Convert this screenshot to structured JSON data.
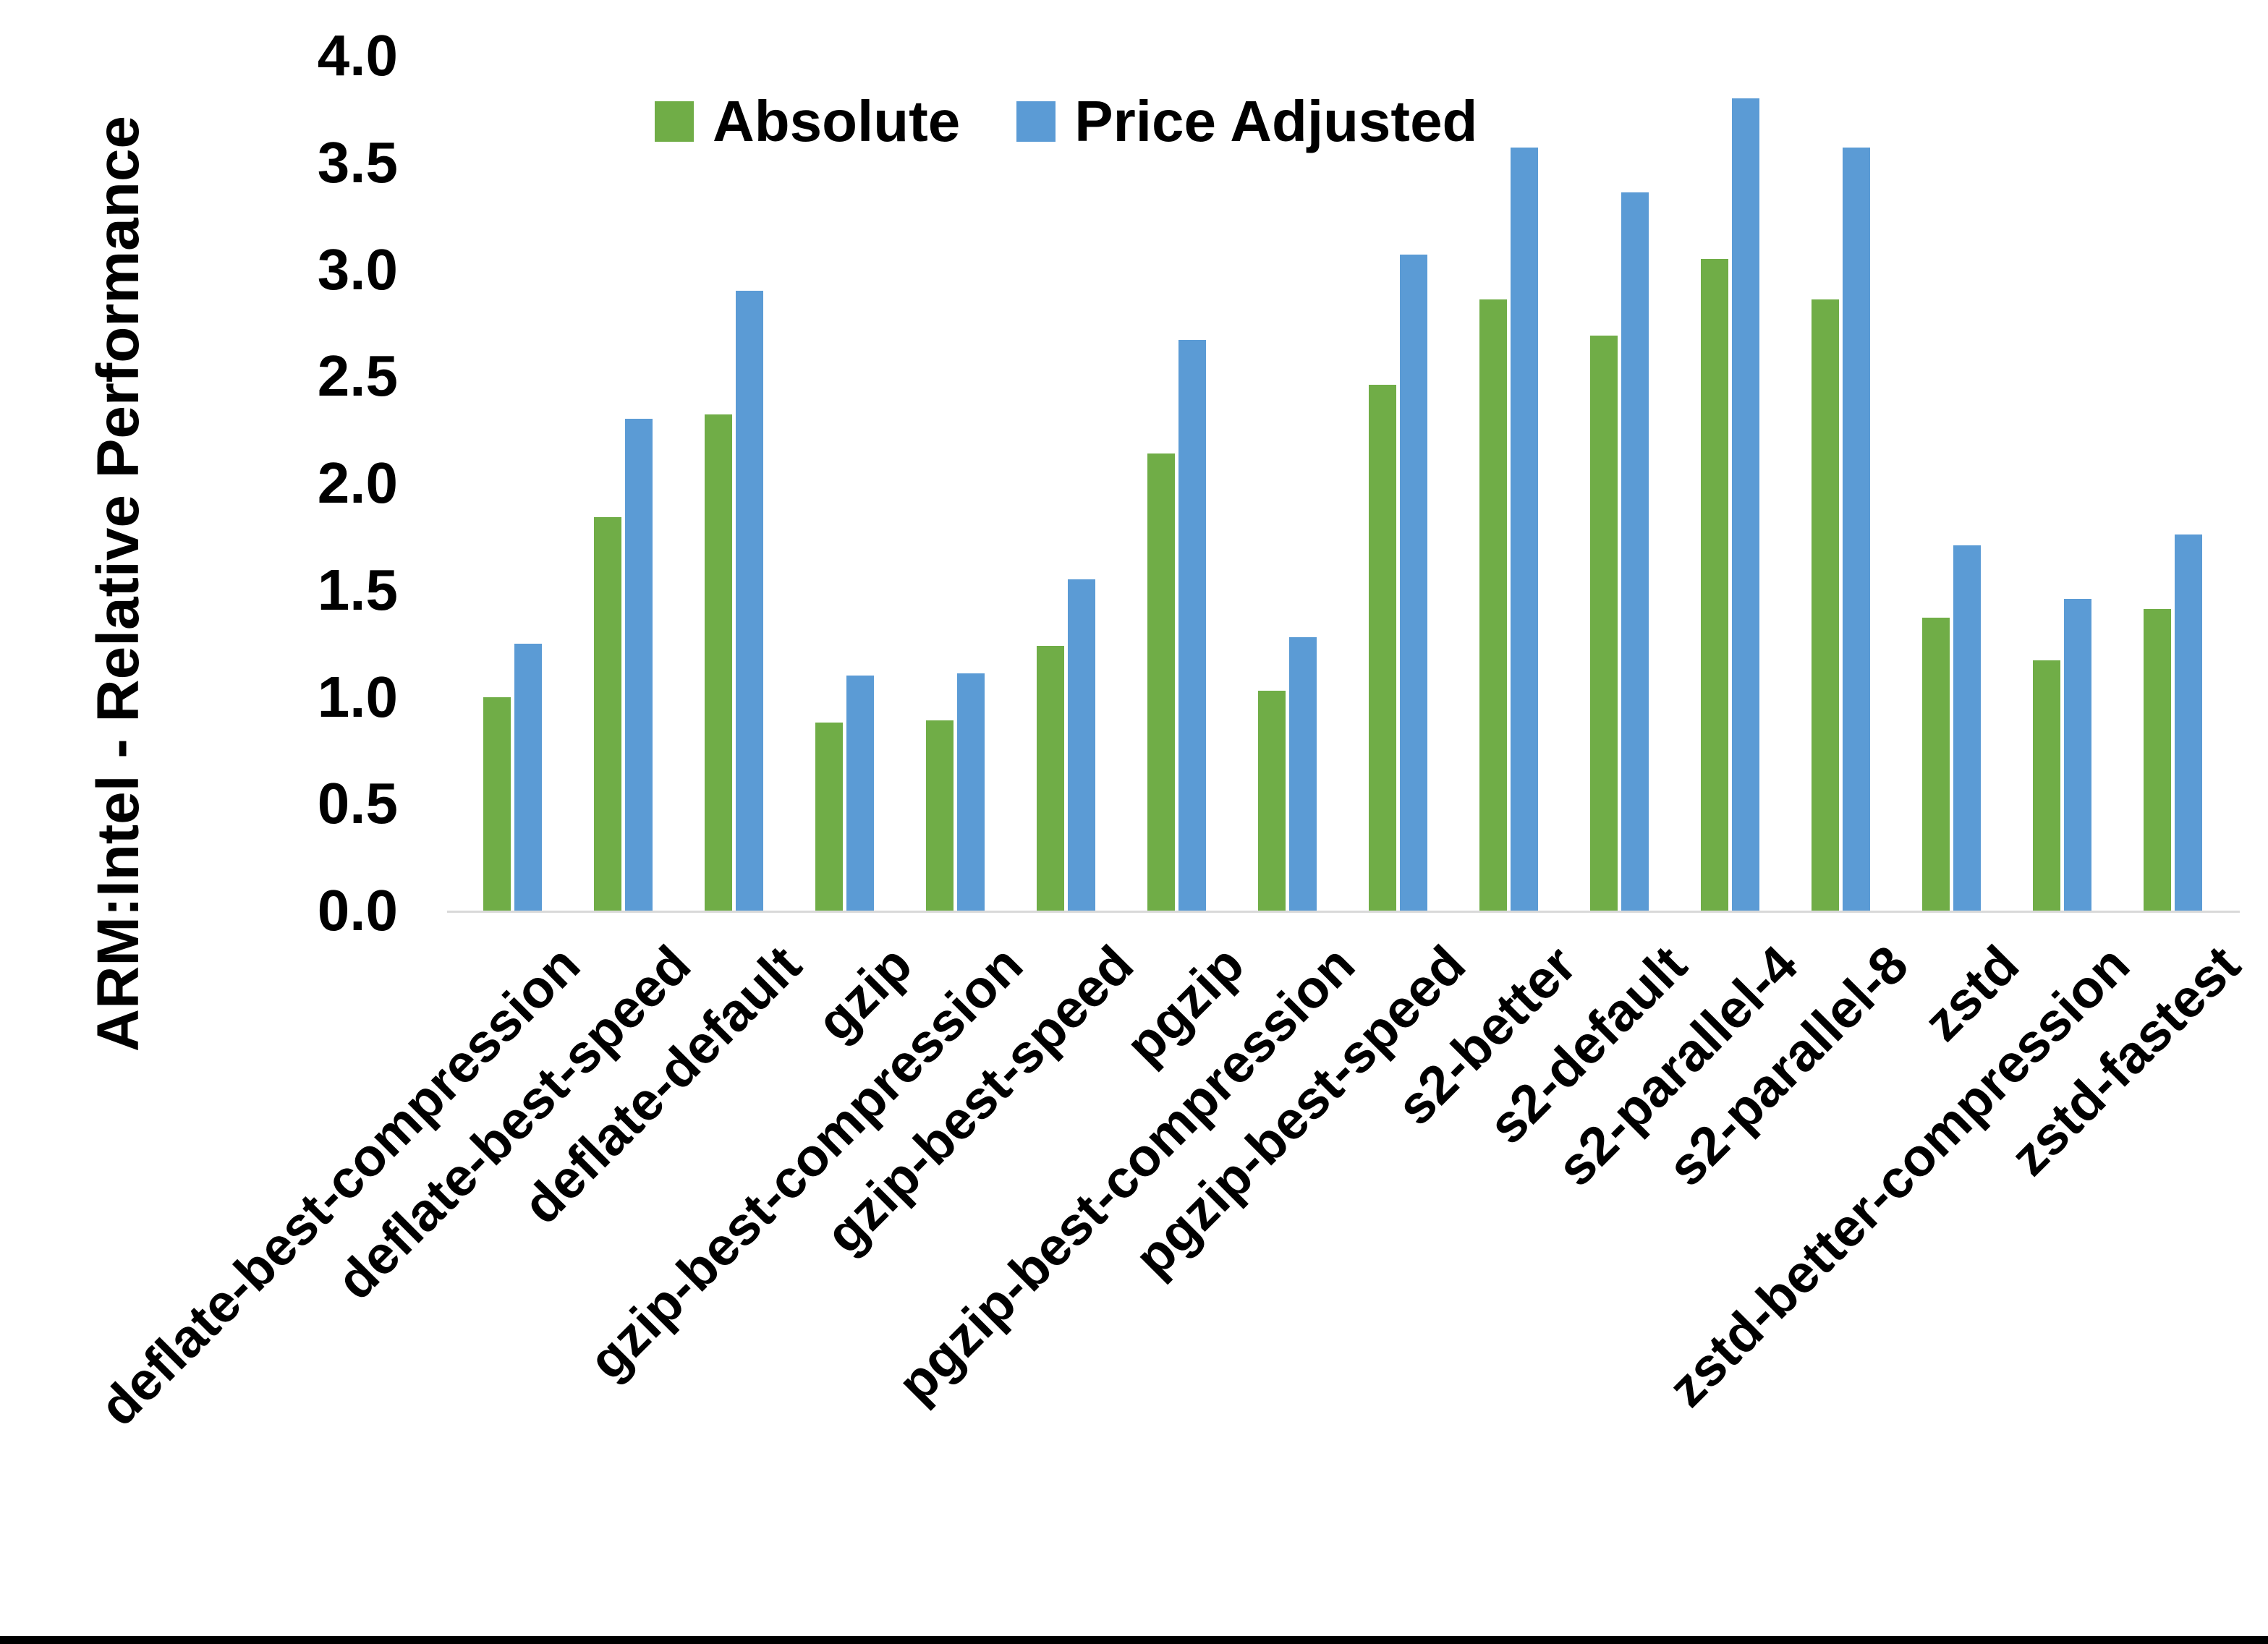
{
  "figure": {
    "background_color": "#FFFFFF",
    "axis_line_color": "#D9D9D9",
    "text_color": "#000000",
    "bottom_border_color": "#000000"
  },
  "chart_data": {
    "type": "bar",
    "title": "",
    "xlabel": "",
    "ylabel": "ARM:Intel - Relative Performance",
    "ylim": [
      0.0,
      4.0
    ],
    "ytick_step": 0.5,
    "ytick_labels": [
      "0.0",
      "0.5",
      "1.0",
      "1.5",
      "2.0",
      "2.5",
      "3.0",
      "3.5",
      "4.0"
    ],
    "grid": false,
    "legend_position": "top-center",
    "categories": [
      "deflate-best-compression",
      "deflate-best-speed",
      "deflate-default",
      "gzip",
      "gzip-best-compression",
      "gzip-best-speed",
      "pgzip",
      "pgzip-best-compression",
      "pgzip-best-speed",
      "s2-better",
      "s2-default",
      "s2-parallel-4",
      "s2-parallel-8",
      "zstd",
      "zstd-better-compression",
      "zstd-fastest"
    ],
    "series": [
      {
        "name": "Absolute",
        "color": "#70AD47",
        "values": [
          1.0,
          1.84,
          2.32,
          0.88,
          0.89,
          1.24,
          2.14,
          1.03,
          2.46,
          2.86,
          2.69,
          3.05,
          2.86,
          1.37,
          1.17,
          1.41
        ]
      },
      {
        "name": "Price Adjusted",
        "color": "#5B9BD5",
        "values": [
          1.25,
          2.3,
          2.9,
          1.1,
          1.11,
          1.55,
          2.67,
          1.28,
          3.07,
          3.57,
          3.36,
          3.8,
          3.57,
          1.71,
          1.46,
          1.76
        ]
      }
    ]
  }
}
